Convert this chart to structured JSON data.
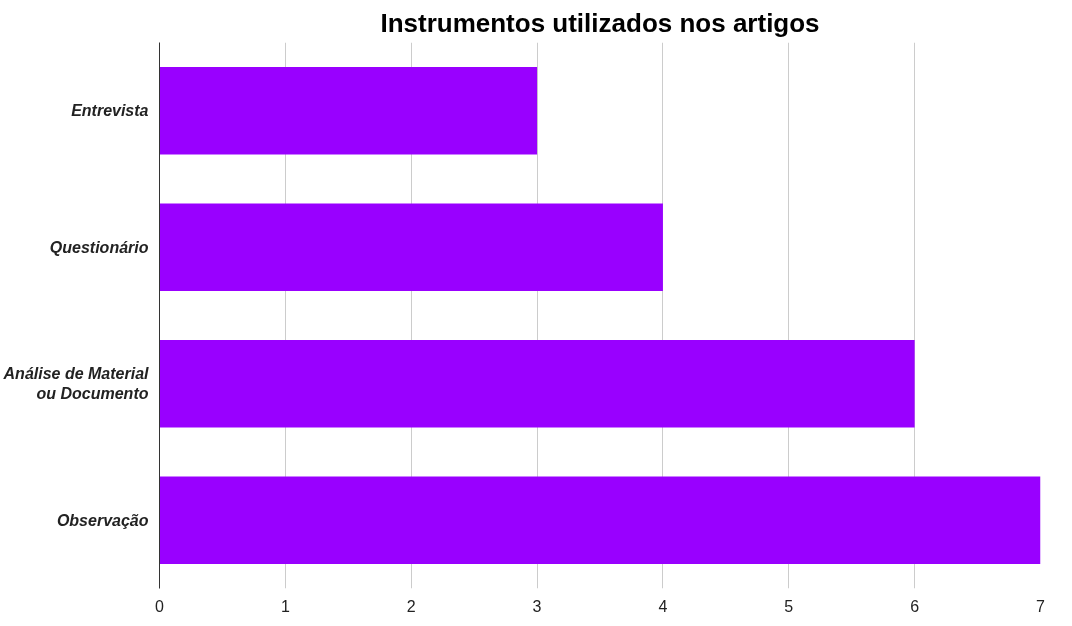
{
  "chart_data": {
    "type": "bar",
    "orientation": "horizontal",
    "title": "Instrumentos utilizados nos artigos",
    "categories": [
      "Entrevista",
      "Questionário",
      "Análise de Material ou Documento",
      "Observação"
    ],
    "values": [
      3,
      4,
      6,
      7
    ],
    "color": "#9900ff",
    "xlim": [
      0,
      7
    ],
    "xticks": [
      0,
      1,
      2,
      3,
      4,
      5,
      6,
      7
    ],
    "grid": "x"
  }
}
